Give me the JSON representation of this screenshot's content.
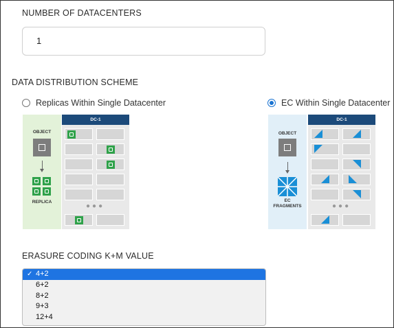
{
  "form": {
    "num_datacenters_label": "NUMBER OF DATACENTERS",
    "num_datacenters_value": "1",
    "distribution_label": "DATA DISTRIBUTION SCHEME",
    "erasure_label": "ERASURE CODING K+M VALUE"
  },
  "schemes": [
    {
      "label": "Replicas Within Single Datacenter",
      "selected": false,
      "diagram": {
        "dc": "DC-1",
        "object": "OBJECT",
        "result": "REPLICA"
      }
    },
    {
      "label": "EC Within Single Datacenter",
      "selected": true,
      "diagram": {
        "dc": "DC-1",
        "object": "OBJECT",
        "result_line1": "EC",
        "result_line2": "FRAGMENTS"
      }
    }
  ],
  "erasure_options": {
    "selected": "4+2",
    "check": "✓",
    "items": [
      "4+2",
      "6+2",
      "8+2",
      "9+3",
      "12+4"
    ]
  },
  "colors": {
    "accent": "#1e74e2",
    "dc_header": "#1c4a7a",
    "replica_green": "#2fa24a",
    "fragment_blue": "#1a8fd6"
  }
}
